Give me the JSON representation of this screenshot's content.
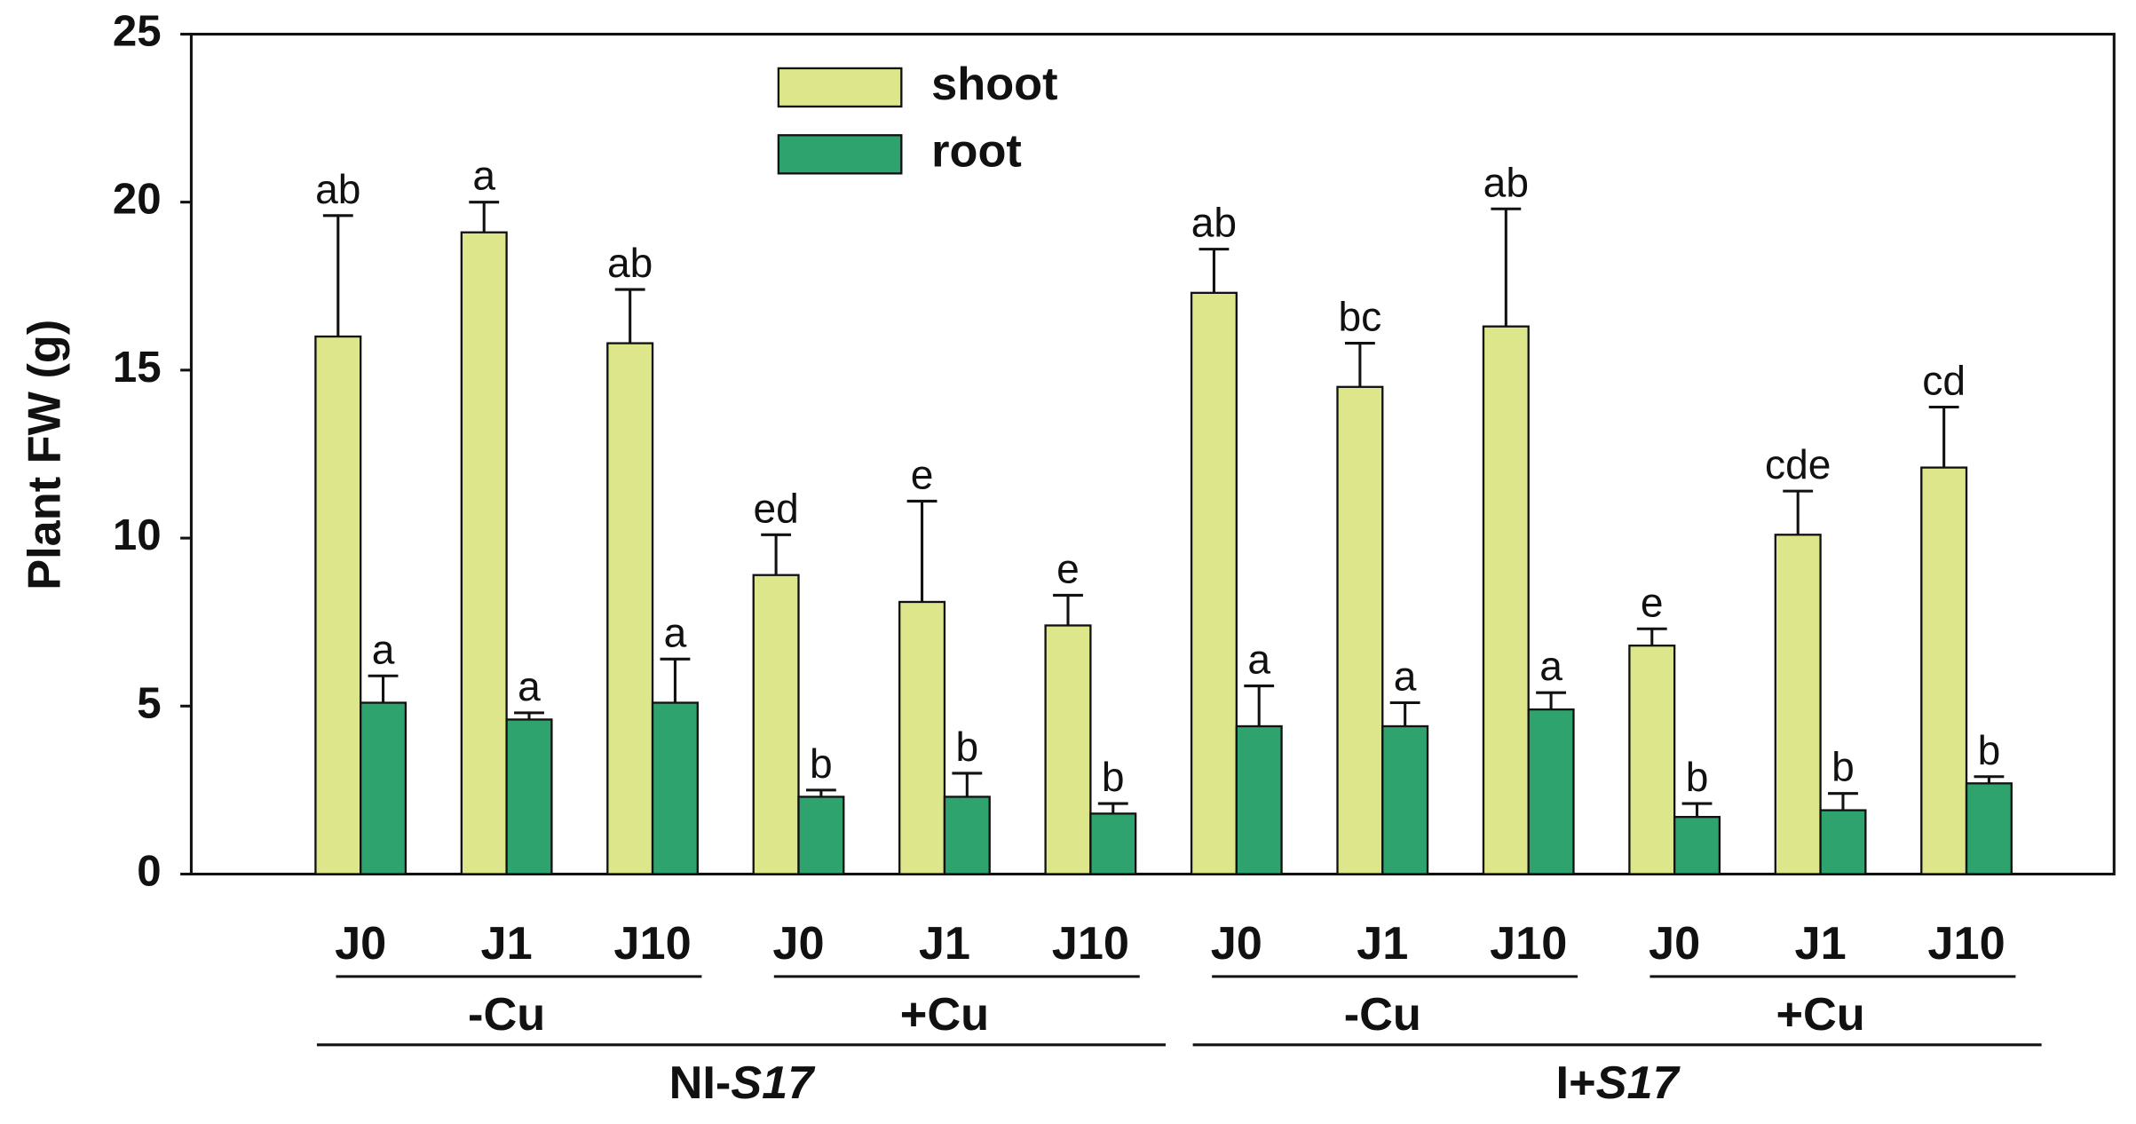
{
  "chart_data": {
    "type": "bar",
    "ylabel": "Plant FW (g)",
    "categories": [
      "J0",
      "J1",
      "J10",
      "J0",
      "J1",
      "J10",
      "J0",
      "J1",
      "J10",
      "J0",
      "J1",
      "J10"
    ],
    "groups": [
      "-Cu",
      "+Cu",
      "-Cu",
      "+Cu"
    ],
    "supergroups": [
      {
        "prefix": "NI-",
        "italic": "S17"
      },
      {
        "prefix": "I+",
        "italic": "S17"
      }
    ],
    "series": [
      {
        "name": "shoot",
        "color": "#dde68a",
        "values": [
          16.0,
          19.1,
          15.8,
          8.9,
          8.1,
          7.4,
          17.3,
          14.5,
          16.3,
          6.8,
          10.1,
          12.1
        ],
        "errors": [
          3.6,
          0.9,
          1.6,
          1.2,
          3.0,
          0.9,
          1.3,
          1.3,
          3.5,
          0.5,
          1.3,
          1.8
        ],
        "labels": [
          "ab",
          "a",
          "ab",
          "ed",
          "e",
          "e",
          "ab",
          "bc",
          "ab",
          "e",
          "cde",
          "cd"
        ]
      },
      {
        "name": "root",
        "color": "#2ea36d",
        "values": [
          5.1,
          4.6,
          5.1,
          2.3,
          2.3,
          1.8,
          4.4,
          4.4,
          4.9,
          1.7,
          1.9,
          2.7
        ],
        "errors": [
          0.8,
          0.2,
          1.3,
          0.2,
          0.7,
          0.3,
          1.2,
          0.7,
          0.5,
          0.4,
          0.5,
          0.2
        ],
        "labels": [
          "a",
          "a",
          "a",
          "b",
          "b",
          "b",
          "a",
          "a",
          "a",
          "b",
          "b",
          "b"
        ]
      }
    ],
    "ylim": [
      0,
      25
    ],
    "yticks": [
      0,
      5,
      10,
      15,
      20,
      25
    ]
  }
}
